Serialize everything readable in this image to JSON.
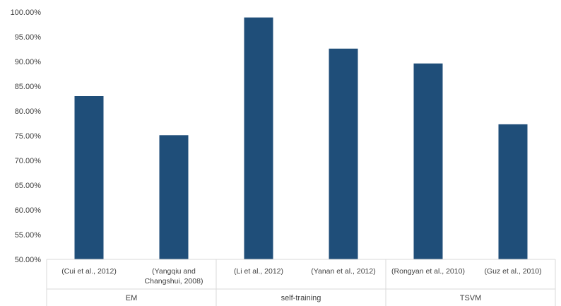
{
  "chart_data": {
    "type": "bar",
    "title": "",
    "xlabel": "",
    "ylabel": "",
    "ylim": [
      0.5,
      1.0
    ],
    "y_ticks": [
      "50.00%",
      "55.00%",
      "60.00%",
      "65.00%",
      "70.00%",
      "75.00%",
      "80.00%",
      "85.00%",
      "90.00%",
      "95.00%",
      "100.00%"
    ],
    "y_tick_values": [
      0.5,
      0.55,
      0.6,
      0.65,
      0.7,
      0.75,
      0.8,
      0.85,
      0.9,
      0.95,
      1.0
    ],
    "grid": false,
    "bar_color": "#1f4e79",
    "groups": [
      {
        "label": "EM",
        "categories": [
          {
            "label_lines": [
              "(Cui et al., 2012)"
            ],
            "value": 0.83
          },
          {
            "label_lines": [
              "(Yangqiu and",
              "Changshui, 2008)"
            ],
            "value": 0.751
          }
        ]
      },
      {
        "label": "self-training",
        "categories": [
          {
            "label_lines": [
              "(Li et al., 2012)"
            ],
            "value": 0.989
          },
          {
            "label_lines": [
              "(Yanan et al., 2012)"
            ],
            "value": 0.926
          }
        ]
      },
      {
        "label": "TSVM",
        "categories": [
          {
            "label_lines": [
              "(Rongyan et al., 2010)"
            ],
            "value": 0.896
          },
          {
            "label_lines": [
              "(Guz et al., 2010)"
            ],
            "value": 0.773
          }
        ]
      }
    ]
  }
}
